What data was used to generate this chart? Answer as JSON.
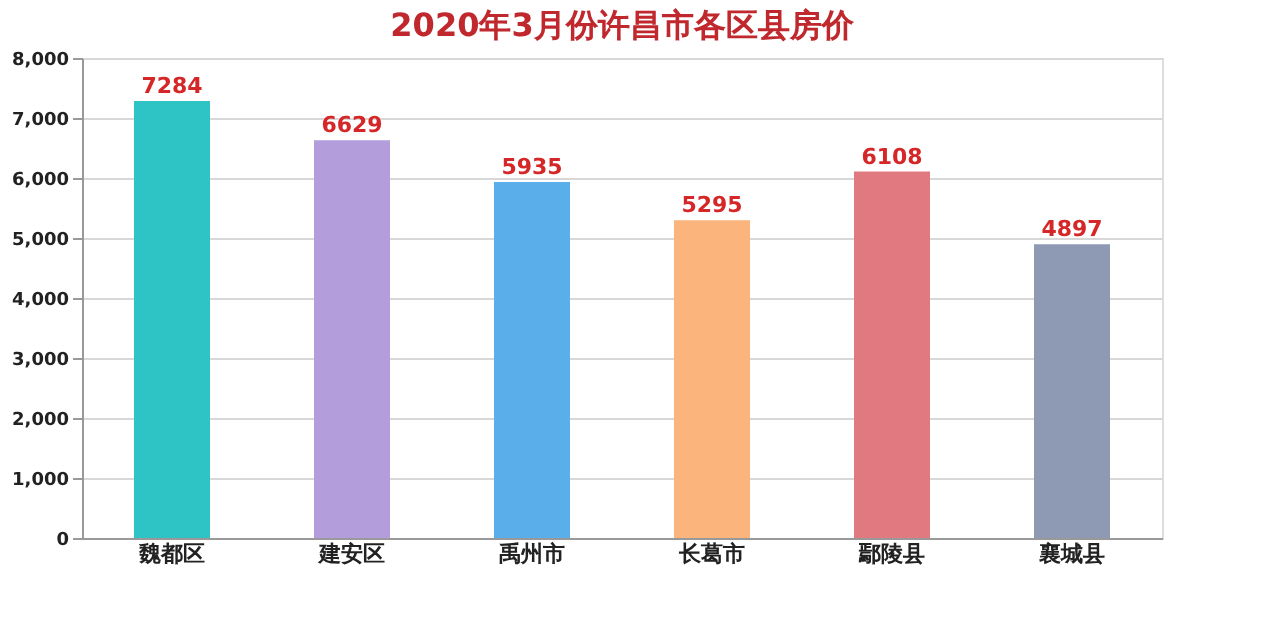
{
  "chart_data": {
    "type": "bar",
    "title": "2020年3月份许昌市各区县房价",
    "categories": [
      "魏都区",
      "建安区",
      "禹州市",
      "长葛市",
      "鄢陵县",
      "襄城县"
    ],
    "values": [
      7284,
      6629,
      5935,
      5295,
      6108,
      4897
    ],
    "colors": [
      "#2ec4c6",
      "#b39ddb",
      "#5aaeea",
      "#fbb47c",
      "#e07a80",
      "#8e9ab4"
    ],
    "ylim": [
      0,
      8000
    ],
    "yticks": [
      {
        "value": 0,
        "label": "0"
      },
      {
        "value": 1000,
        "label": "1,000"
      },
      {
        "value": 2000,
        "label": "2,000"
      },
      {
        "value": 3000,
        "label": "3,000"
      },
      {
        "value": 4000,
        "label": "4,000"
      },
      {
        "value": 5000,
        "label": "5,000"
      },
      {
        "value": 6000,
        "label": "6,000"
      },
      {
        "value": 7000,
        "label": "7,000"
      },
      {
        "value": 8000,
        "label": "8,000"
      }
    ],
    "grid": "y",
    "data_labels": true
  }
}
